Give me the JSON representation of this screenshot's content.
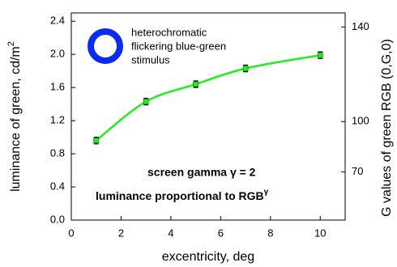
{
  "chart_data": {
    "type": "line",
    "x": [
      1,
      3,
      5,
      7,
      10
    ],
    "series": [
      {
        "color": "#22ee22",
        "values": [
          0.96,
          1.43,
          1.64,
          1.83,
          1.99
        ],
        "errors": [
          0.04,
          0.04,
          0.04,
          0.04,
          0.04
        ]
      }
    ],
    "xlim": [
      0,
      11
    ],
    "xticks": [
      0,
      2,
      4,
      6,
      8,
      10
    ],
    "ylim": [
      0,
      2.5
    ],
    "yticks": [
      {
        "value": 0,
        "label": "0.0"
      },
      0.4,
      0.8,
      1.2,
      1.6,
      {
        "value": 2,
        "label": "2.0"
      },
      2.4
    ],
    "y2lim": [
      0,
      145
    ],
    "y2scale": "power",
    "y2exponent": 2,
    "y2ticks": [
      70,
      100,
      140
    ],
    "xlabel": "excentricity, deg",
    "ylabel": {
      "text": "luminance of green, cd/m",
      "sup": "2"
    },
    "y2label": "G values of green RGB (0,G,0)",
    "annotations": {
      "stimulus": [
        "heterochromatic",
        "flickering blue-green",
        "stimulus"
      ],
      "gamma": "screen gamma  γ = 2",
      "proportional": {
        "text": "luminance proportional to RGB",
        "sup": "γ"
      }
    }
  }
}
